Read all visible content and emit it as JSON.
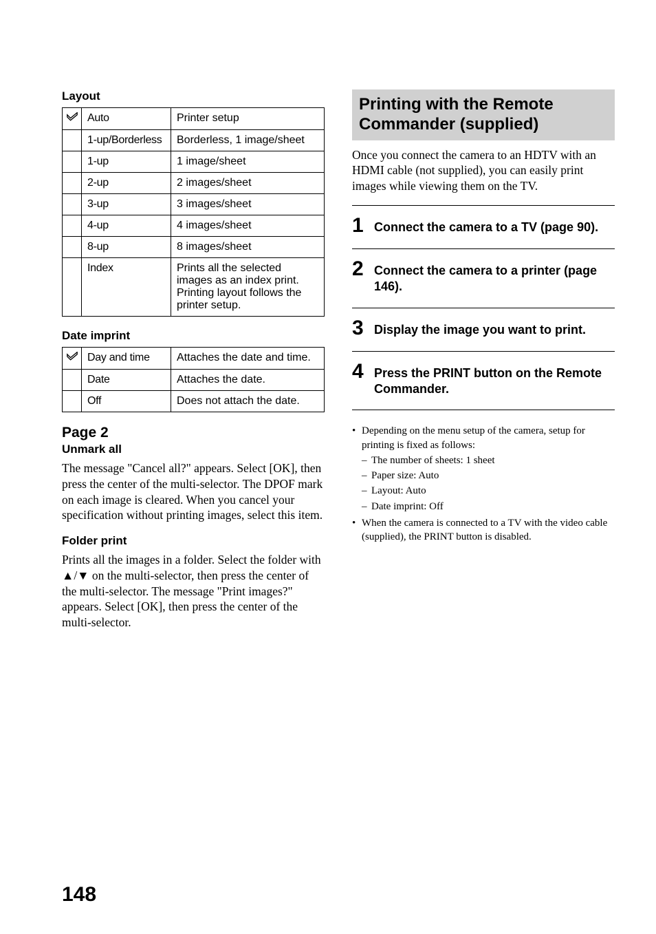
{
  "left": {
    "layout_heading": "Layout",
    "layout_table": [
      {
        "check": true,
        "label": "Auto",
        "desc": "Printer setup"
      },
      {
        "check": false,
        "label": "1-up/Borderless",
        "desc": "Borderless, 1 image/sheet"
      },
      {
        "check": false,
        "label": "1-up",
        "desc": "1 image/sheet"
      },
      {
        "check": false,
        "label": "2-up",
        "desc": "2 images/sheet"
      },
      {
        "check": false,
        "label": "3-up",
        "desc": "3 images/sheet"
      },
      {
        "check": false,
        "label": "4-up",
        "desc": "4 images/sheet"
      },
      {
        "check": false,
        "label": "8-up",
        "desc": "8 images/sheet"
      },
      {
        "check": false,
        "label": "Index",
        "desc": "Prints all the selected images as an index print. Printing layout follows the printer setup."
      }
    ],
    "date_heading": "Date imprint",
    "date_table": [
      {
        "check": true,
        "label": "Day and time",
        "desc": "Attaches the date and time."
      },
      {
        "check": false,
        "label": "Date",
        "desc": "Attaches the date."
      },
      {
        "check": false,
        "label": "Off",
        "desc": "Does not attach the date."
      }
    ],
    "page2_title": "Page 2",
    "unmark_heading": "Unmark all",
    "unmark_body": "The message \"Cancel all?\" appears. Select [OK], then press the center of the multi-selector. The DPOF mark on each image is cleared. When you cancel your specification without printing images, select this item.",
    "folder_heading": "Folder print",
    "folder_body_pre": "Prints all the images in a folder. Select the folder with ",
    "folder_body_post": " on the multi-selector, then press the center of the multi-selector. The message \"Print images?\" appears. Select [OK], then press the center of the multi-selector."
  },
  "right": {
    "callout": "Printing with the Remote Commander (supplied)",
    "intro": "Once you connect the camera to an HDTV with an HDMI cable (not supplied), you can easily print images while viewing them on the TV.",
    "steps": [
      {
        "num": "1",
        "text": "Connect the camera to a TV (page 90)."
      },
      {
        "num": "2",
        "text": "Connect the camera to a printer (page 146)."
      },
      {
        "num": "3",
        "text": "Display the image you want to print."
      },
      {
        "num": "4",
        "text": "Press the PRINT button on the Remote Commander."
      }
    ],
    "notes": [
      {
        "text": "Depending on the menu setup of the camera, setup for printing is fixed as follows:",
        "sub": [
          "The number of sheets: 1 sheet",
          "Paper size: Auto",
          "Layout: Auto",
          "Date imprint: Off"
        ]
      },
      {
        "text": "When the camera is connected to a TV with the video cable (supplied), the PRINT button is disabled.",
        "sub": []
      }
    ]
  },
  "page_number": "148"
}
